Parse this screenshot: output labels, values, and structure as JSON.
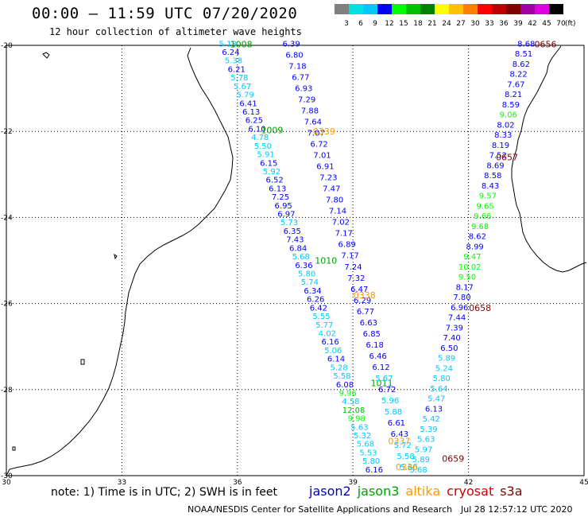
{
  "header": {
    "title": "00:00 – 11:59 UTC 07/20/2020",
    "subtitle": "12 hour collection of altimeter wave heights"
  },
  "colorbar": {
    "unit": "(ft)",
    "ticks": [
      "3",
      "6",
      "9",
      "12",
      "15",
      "18",
      "21",
      "24",
      "27",
      "30",
      "33",
      "36",
      "39",
      "42",
      "45",
      "70"
    ],
    "colors": [
      "#808080",
      "#00e0e0",
      "#00c8ff",
      "#0000ff",
      "#00ff00",
      "#00c000",
      "#008000",
      "#ffff00",
      "#ffc000",
      "#ff8000",
      "#ff0000",
      "#c00000",
      "#800000",
      "#a000a0",
      "#e000e0",
      "#000000"
    ]
  },
  "map": {
    "lon_ticks": [
      "30",
      "33",
      "36",
      "39",
      "42",
      "45"
    ],
    "lat_ticks": [
      "-20",
      "-22",
      "-24",
      "-26",
      "-28",
      "-30"
    ],
    "lon_range": [
      30,
      45
    ],
    "lat_range": [
      -30,
      -20
    ]
  },
  "chart_data": {
    "type": "scatter",
    "color_scale": "SWH ft",
    "tracks": [
      {
        "satellite": "jason3",
        "labels": [
          {
            "text": "1008",
            "lon": 36.1,
            "lat": -19.97
          },
          {
            "text": "1009",
            "lon": 36.9,
            "lat": -21.97
          },
          {
            "text": "1010",
            "lon": 38.3,
            "lat": -25.0
          },
          {
            "text": "1011",
            "lon": 39.75,
            "lat": -27.85
          }
        ],
        "values": [
          5.13,
          6.24,
          5.38,
          6.21,
          5.78,
          5.67,
          5.79,
          6.41,
          6.13,
          6.25,
          6.1,
          4.78,
          5.5,
          5.91,
          6.15,
          5.92,
          6.52,
          6.13,
          7.25,
          6.95,
          6.97,
          5.73,
          6.35,
          7.43,
          6.84,
          5.68,
          6.36,
          5.8,
          5.74,
          6.34,
          6.26,
          6.42,
          5.55,
          5.77,
          4.02,
          6.16,
          5.06,
          6.14,
          5.28,
          5.58,
          6.08,
          9.96,
          4.58,
          12.08,
          9.98,
          5.63,
          5.32,
          5.68,
          5.53,
          5.8,
          6.16
        ]
      },
      {
        "satellite": "altika",
        "labels": [
          {
            "text": "0339",
            "lon": 38.25,
            "lat": -22.0
          },
          {
            "text": "0338",
            "lon": 39.3,
            "lat": -25.8
          },
          {
            "text": "0337",
            "lon": 40.2,
            "lat": -29.2
          },
          {
            "text": "0336",
            "lon": 40.4,
            "lat": -29.8
          }
        ],
        "values": [
          6.39,
          6.8,
          7.18,
          6.77,
          6.93,
          7.29,
          7.88,
          7.64,
          7.07,
          6.72,
          7.01,
          6.91,
          7.23,
          7.47,
          7.8,
          7.14,
          7.02,
          7.17,
          6.89,
          7.17,
          7.24,
          7.32,
          6.47,
          6.29,
          6.77,
          6.63,
          6.85,
          6.18,
          6.46,
          6.12,
          5.67,
          6.72,
          5.96,
          5.88,
          6.61,
          6.43,
          5.72,
          5.58,
          5.6
        ]
      },
      {
        "satellite": "s3a",
        "labels": [
          {
            "text": "0656",
            "lon": 44.0,
            "lat": -19.97
          },
          {
            "text": "0657",
            "lon": 43.0,
            "lat": -22.6
          },
          {
            "text": "0658",
            "lon": 42.3,
            "lat": -26.1
          },
          {
            "text": "0659",
            "lon": 41.6,
            "lat": -29.6
          }
        ],
        "values": [
          8.68,
          8.51,
          8.62,
          8.22,
          7.67,
          8.21,
          8.59,
          9.06,
          8.02,
          8.33,
          8.19,
          7.52,
          8.69,
          8.58,
          8.43,
          9.57,
          9.65,
          9.66,
          9.68,
          8.62,
          8.99,
          9.47,
          10.02,
          9.5,
          8.17,
          7.8,
          6.96,
          7.44,
          7.39,
          7.4,
          6.5,
          5.89,
          5.24,
          5.8,
          5.64,
          5.47,
          6.13,
          5.42,
          5.39,
          5.63,
          5.97,
          5.89,
          5.68
        ]
      }
    ]
  },
  "footer": {
    "note": "note:  1) Time is in UTC;  2) SWH is in feet",
    "legend": [
      {
        "name": "jason2",
        "color": "#0000cc"
      },
      {
        "name": "jason3",
        "color": "#00a000"
      },
      {
        "name": "altika",
        "color": "#ff9900"
      },
      {
        "name": "cryosat",
        "color": "#cc0000"
      },
      {
        "name": "s3a",
        "color": "#800000"
      }
    ],
    "credit": "NOAA/NESDIS Center for Satellite Applications and Research",
    "stamp": "Jul 28 12:57:12 UTC 2020"
  }
}
